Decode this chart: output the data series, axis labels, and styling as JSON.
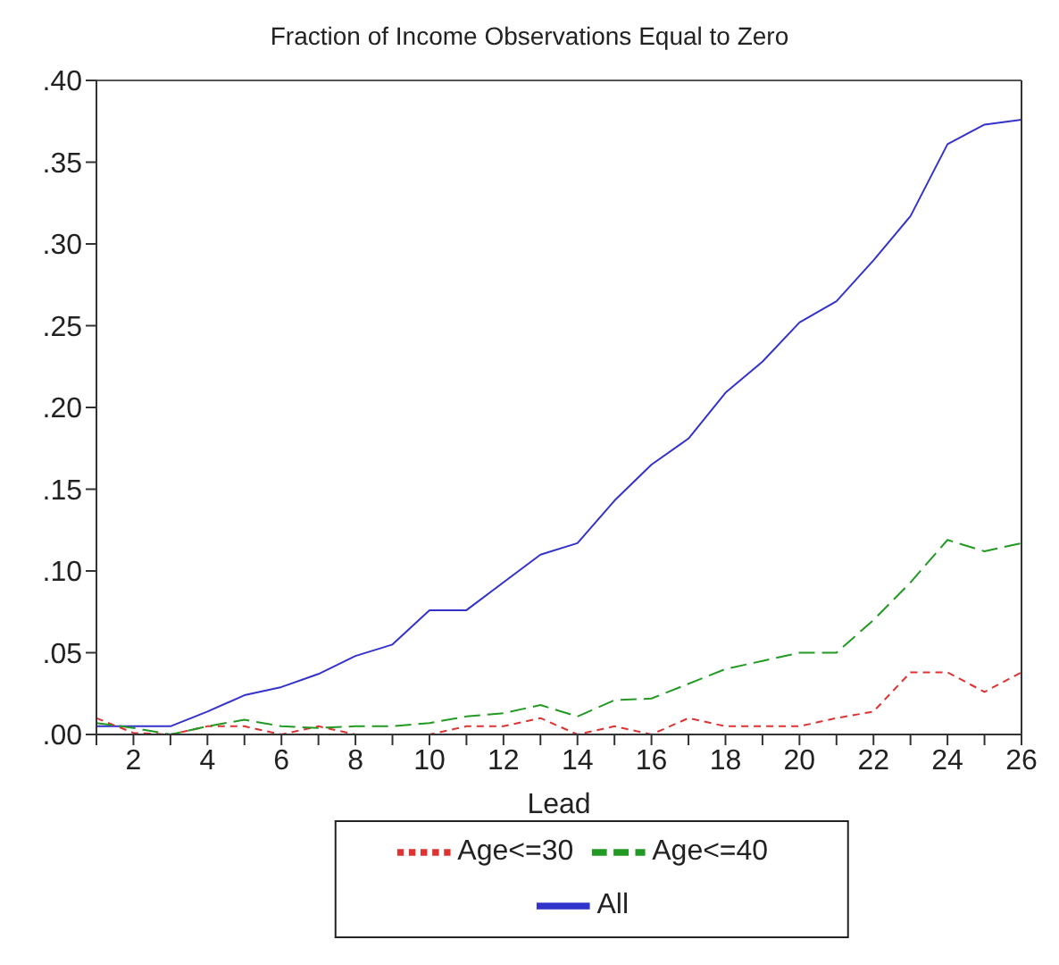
{
  "chart_data": {
    "type": "line",
    "title": "Fraction of Income Observations Equal to Zero",
    "xlabel": "Lead",
    "x": [
      1,
      2,
      3,
      4,
      5,
      6,
      7,
      8,
      9,
      10,
      11,
      12,
      13,
      14,
      15,
      16,
      17,
      18,
      19,
      20,
      21,
      22,
      23,
      24,
      25,
      26
    ],
    "series": [
      {
        "name": "All",
        "color": "#3333cc",
        "line_style": "solid",
        "values": [
          0.005,
          0.005,
          0.005,
          0.014,
          0.024,
          0.029,
          0.037,
          0.048,
          0.055,
          0.076,
          0.076,
          0.093,
          0.11,
          0.117,
          0.143,
          0.165,
          0.181,
          0.209,
          0.228,
          0.252,
          0.265,
          0.29,
          0.317,
          0.361,
          0.373,
          0.376
        ]
      },
      {
        "name": "Age<=30",
        "color": "#dd3333",
        "line_style": "dashed",
        "values": [
          0.01,
          0.001,
          0.0,
          0.005,
          0.005,
          0.0,
          0.005,
          0.0,
          0.0,
          0.0,
          0.005,
          0.005,
          0.01,
          0.0,
          0.005,
          0.0,
          0.01,
          0.005,
          0.005,
          0.005,
          0.01,
          0.014,
          0.038,
          0.038,
          0.026,
          0.038
        ]
      },
      {
        "name": "Age<=40",
        "color": "#229922",
        "line_style": "dashed",
        "values": [
          0.007,
          0.004,
          0.0,
          0.005,
          0.009,
          0.005,
          0.004,
          0.005,
          0.005,
          0.007,
          0.011,
          0.013,
          0.018,
          0.011,
          0.021,
          0.022,
          0.031,
          0.04,
          0.045,
          0.05,
          0.05,
          0.07,
          0.093,
          0.119,
          0.112,
          0.117
        ]
      }
    ],
    "xlim": [
      1,
      26
    ],
    "xticks": [
      {
        "value": 1,
        "label": null
      },
      2,
      {
        "value": 3,
        "label": null
      },
      4,
      {
        "value": 5,
        "label": null
      },
      6,
      {
        "value": 7,
        "label": null
      },
      8,
      {
        "value": 9,
        "label": null
      },
      10,
      {
        "value": 11,
        "label": null
      },
      12,
      {
        "value": 13,
        "label": null
      },
      14,
      {
        "value": 15,
        "label": null
      },
      16,
      {
        "value": 17,
        "label": null
      },
      18,
      {
        "value": 19,
        "label": null
      },
      20,
      {
        "value": 21,
        "label": null
      },
      22,
      {
        "value": 23,
        "label": null
      },
      24,
      {
        "value": 25,
        "label": null
      },
      26
    ],
    "ylim": [
      0,
      0.4
    ],
    "yticks": [
      {
        "value": 0,
        "label": ".00"
      },
      {
        "value": 0.05,
        "label": ".05"
      },
      {
        "value": 0.1,
        "label": ".10"
      },
      {
        "value": 0.15,
        "label": ".15"
      },
      {
        "value": 0.2,
        "label": ".20"
      },
      {
        "value": 0.25,
        "label": ".25"
      },
      {
        "value": 0.3,
        "label": ".30"
      },
      {
        "value": 0.35,
        "label": ".35"
      },
      {
        "value": 0.4,
        "label": ".40"
      }
    ],
    "grid": false,
    "legend": "bottom",
    "marker": "none"
  }
}
